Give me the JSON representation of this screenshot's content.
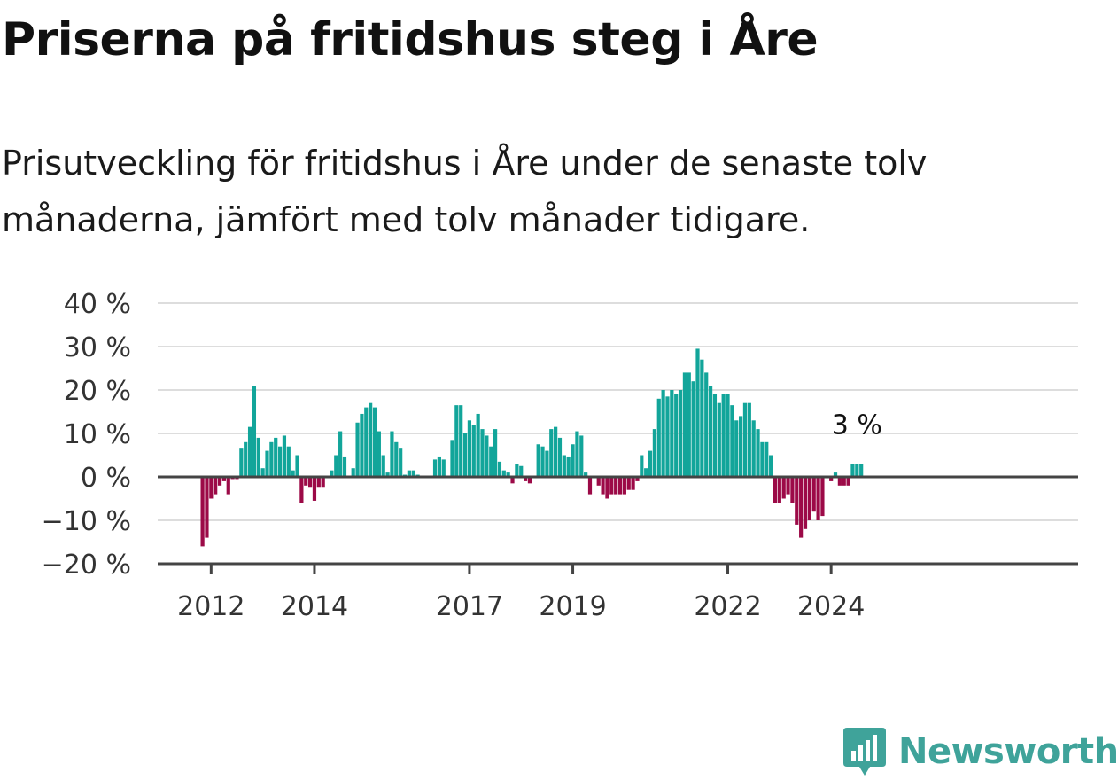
{
  "title": "Priserna på fritidshus steg i Åre",
  "subtitle": "Prisutveckling för fritidshus i Åre under de senaste tolv månaderna, jämfört med tolv månader tidigare.",
  "brand": {
    "name": "Newsworthy",
    "color": "#3fa39a"
  },
  "colors": {
    "positive": "#12a59a",
    "negative": "#9c0a47",
    "grid": "#dddddd",
    "axis": "#444444"
  },
  "chart_data": {
    "type": "bar",
    "title": "Priserna på fritidshus steg i Åre",
    "xlabel": "",
    "ylabel": "",
    "y_unit": "%",
    "ylim": [
      -20,
      40
    ],
    "yticks": [
      40,
      30,
      20,
      10,
      0,
      -10,
      -20
    ],
    "ytick_labels": [
      "40 %",
      "30 %",
      "20 %",
      "10 %",
      "0 %",
      "−10 %",
      "−20 %"
    ],
    "xtick_labels": [
      {
        "label": "2012",
        "month": "2012-01"
      },
      {
        "label": "2014",
        "month": "2014-01"
      },
      {
        "label": "2017",
        "month": "2017-01"
      },
      {
        "label": "2019",
        "month": "2019-01"
      },
      {
        "label": "2022",
        "month": "2022-01"
      },
      {
        "label": "2024",
        "month": "2024-01"
      }
    ],
    "start_month": "2011-11",
    "grid": true,
    "annotation": {
      "label": "3 %",
      "value": 3
    },
    "values": [
      -16,
      -14,
      -5,
      -4,
      -2,
      -1,
      -4,
      -0.5,
      -0.5,
      6.5,
      8,
      11.5,
      21,
      9,
      2,
      6,
      8,
      9,
      7,
      9.5,
      7,
      1.5,
      5,
      -6,
      -2,
      -2.5,
      -5.5,
      -2.5,
      -2.5,
      0,
      1.5,
      5,
      10.5,
      4.5,
      0,
      2,
      12.5,
      14.5,
      16,
      17,
      16,
      10.5,
      5,
      1,
      10.5,
      8,
      6.5,
      0.5,
      1.5,
      1.5,
      0.5,
      0,
      0,
      0,
      4,
      4.5,
      4,
      0,
      8.5,
      16.5,
      16.5,
      10,
      13,
      12,
      14.5,
      11,
      9.5,
      7,
      11,
      3.5,
      1.5,
      1,
      -1.5,
      3,
      2.5,
      -1,
      -1.5,
      0,
      7.5,
      7,
      6,
      11,
      11.5,
      9,
      5,
      4.5,
      7.5,
      10.5,
      9.5,
      1,
      -4,
      0,
      -2,
      -4,
      -5,
      -4,
      -4,
      -4,
      -4,
      -3,
      -3,
      -1,
      5,
      2,
      6,
      11,
      18,
      20,
      18.5,
      20,
      19,
      20,
      24,
      24,
      22,
      29.5,
      27,
      24,
      21,
      19,
      17,
      19,
      19,
      16.5,
      13,
      14,
      17,
      17,
      13,
      11,
      8,
      8,
      5,
      -6,
      -6,
      -5,
      -4,
      -6,
      -11,
      -14,
      -12,
      -10,
      -8,
      -10,
      -9,
      0,
      -1,
      1,
      -2,
      -2,
      -2,
      3,
      3,
      3
    ]
  }
}
